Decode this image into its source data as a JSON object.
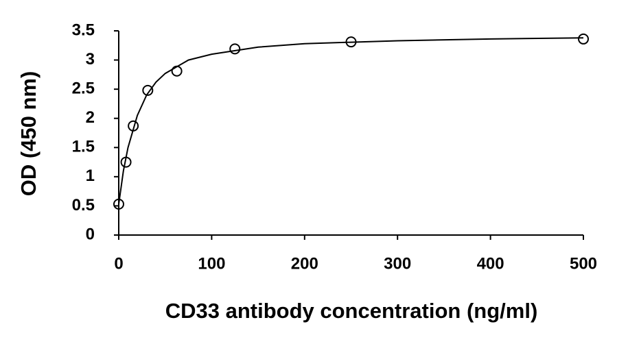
{
  "chart_data": {
    "type": "scatter",
    "xlabel": "CD33 antibody concentration (ng/ml)",
    "ylabel": "OD (450 nm)",
    "x": [
      0,
      7.8,
      15.6,
      31.25,
      62.5,
      125,
      250,
      500
    ],
    "values": [
      0.53,
      1.25,
      1.87,
      2.48,
      2.81,
      3.19,
      3.31,
      3.36
    ],
    "color": "#000000",
    "fit": {
      "x": [
        0,
        5,
        10,
        20,
        30,
        40,
        50,
        75,
        100,
        150,
        200,
        300,
        400,
        500
      ],
      "values": [
        0.53,
        1.1,
        1.5,
        2.05,
        2.4,
        2.62,
        2.77,
        3.0,
        3.1,
        3.22,
        3.28,
        3.33,
        3.36,
        3.38
      ]
    },
    "xlim": [
      0,
      500
    ],
    "xticks": [
      0,
      100,
      200,
      300,
      400,
      500
    ],
    "ylim": [
      0,
      3.5
    ],
    "yticks": [
      0,
      0.5,
      1,
      1.5,
      2,
      2.5,
      3,
      3.5
    ]
  }
}
